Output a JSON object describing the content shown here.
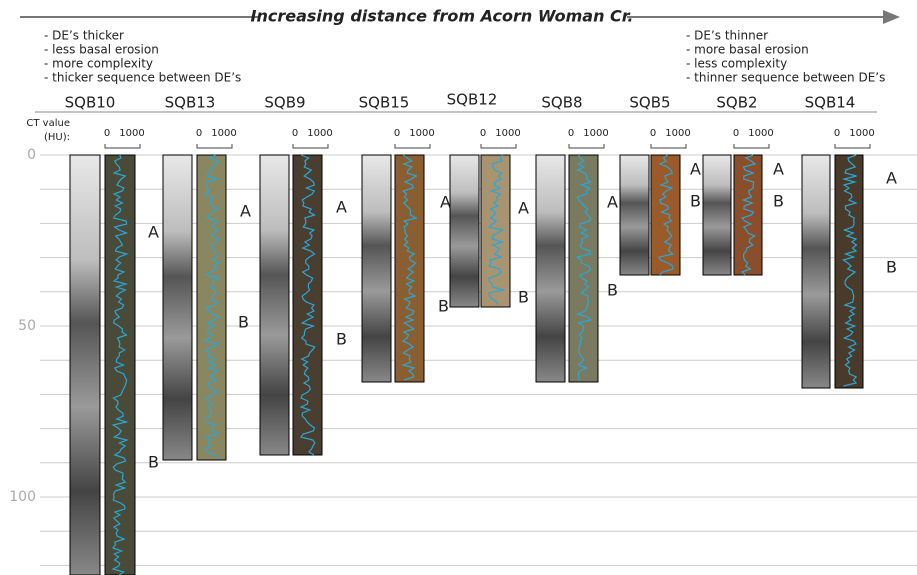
{
  "header": {
    "arrow_label": "Increasing distance from Acorn Woman Cr.",
    "left_notes": [
      "- DE’s thicker",
      "- less basal erosion",
      "- more complexity",
      "- thicker sequence between DE’s"
    ],
    "right_notes": [
      "- DE’s thinner",
      "- more basal erosion",
      "- less complexity",
      "- thinner sequence between DE’s"
    ]
  },
  "axis": {
    "ct_label": [
      "CT value",
      "(HU):"
    ],
    "depth_ticks": [
      "0",
      "50",
      "100"
    ]
  },
  "cores": [
    {
      "name": "SQB10",
      "scale": [
        "0",
        "1000"
      ],
      "labels": [
        "A",
        "B"
      ]
    },
    {
      "name": "SQB13",
      "scale": [
        "0",
        "1000"
      ],
      "labels": [
        "A",
        "B"
      ]
    },
    {
      "name": "SQB9",
      "scale": [
        "0",
        "1000"
      ],
      "labels": [
        "A",
        "B"
      ]
    },
    {
      "name": "SQB15",
      "scale": [
        "0",
        "1000"
      ],
      "labels": [
        "A",
        "B"
      ]
    },
    {
      "name": "SQB12",
      "scale": [
        "0",
        "1000"
      ],
      "labels": [
        "A",
        "B"
      ]
    },
    {
      "name": "SQB8",
      "scale": [
        "0",
        "1000"
      ],
      "labels": [
        "A",
        "B"
      ]
    },
    {
      "name": "SQB5",
      "scale": [
        "0",
        "1000"
      ],
      "labels": [
        "A",
        "B"
      ]
    },
    {
      "name": "SQB2",
      "scale": [
        "0",
        "1000"
      ],
      "labels": [
        "A",
        "B"
      ]
    },
    {
      "name": "SQB14",
      "scale": [
        "0",
        "1000"
      ],
      "labels": [
        "A",
        "B"
      ]
    }
  ]
}
